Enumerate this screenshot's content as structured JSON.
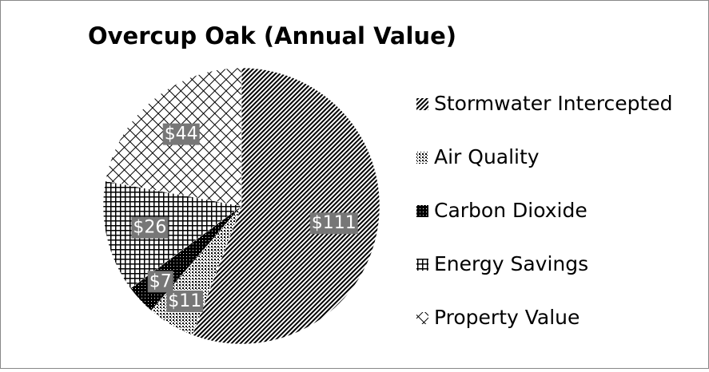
{
  "chart_data": {
    "type": "pie",
    "title": "Overcup Oak (Annual Value)",
    "categories": [
      "Stormwater Intercepted",
      "Air Quality",
      "Carbon Dioxide",
      "Energy Savings",
      "Property Value"
    ],
    "values": [
      111,
      11,
      7,
      26,
      44
    ],
    "value_labels": [
      "$111",
      "$11",
      "$7",
      "$26",
      "$44"
    ],
    "patterns": [
      "diagonal",
      "dots",
      "solid",
      "grid",
      "lattice"
    ],
    "color": "#000000",
    "legend": "right"
  }
}
